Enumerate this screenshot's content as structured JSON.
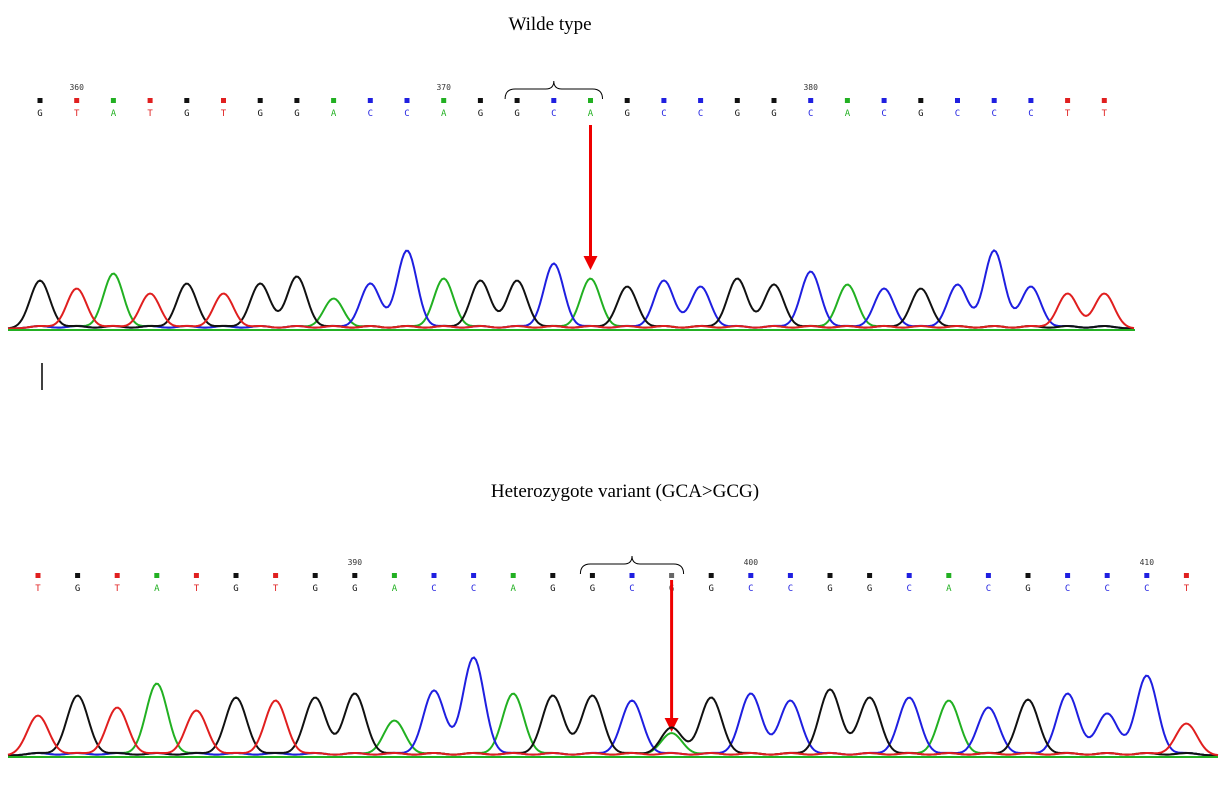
{
  "base_colors": {
    "A": "#22b022",
    "C": "#1f1fe0",
    "G": "#111111",
    "T": "#e01f1f"
  },
  "panels": [
    {
      "title": "Wilde type",
      "bases": [
        "G",
        "T",
        "A",
        "T",
        "G",
        "T",
        "G",
        "G",
        "A",
        "C",
        "C",
        "A",
        "G",
        "G",
        "C",
        "A",
        "G",
        "C",
        "C",
        "G",
        "G",
        "C",
        "A",
        "C",
        "G",
        "C",
        "C",
        "C",
        "T",
        "T"
      ],
      "position_labels": [
        null,
        360,
        null,
        null,
        null,
        null,
        null,
        null,
        null,
        null,
        null,
        370,
        null,
        null,
        null,
        null,
        null,
        null,
        null,
        null,
        null,
        380,
        null,
        null,
        null,
        null,
        null,
        null,
        null,
        null
      ]
    },
    {
      "title": "Heterozygote variant (GCA>GCG)",
      "bases": [
        "T",
        "G",
        "T",
        "A",
        "T",
        "G",
        "T",
        "G",
        "G",
        "A",
        "C",
        "C",
        "A",
        "G",
        "G",
        "C",
        "G",
        "G",
        "C",
        "C",
        "G",
        "G",
        "C",
        "A",
        "C",
        "G",
        "C",
        "C",
        "C",
        "T"
      ],
      "position_labels": [
        null,
        null,
        null,
        null,
        null,
        null,
        null,
        null,
        390,
        null,
        null,
        null,
        null,
        null,
        null,
        null,
        null,
        null,
        400,
        null,
        null,
        null,
        null,
        null,
        null,
        null,
        null,
        null,
        410,
        null
      ]
    }
  ]
}
